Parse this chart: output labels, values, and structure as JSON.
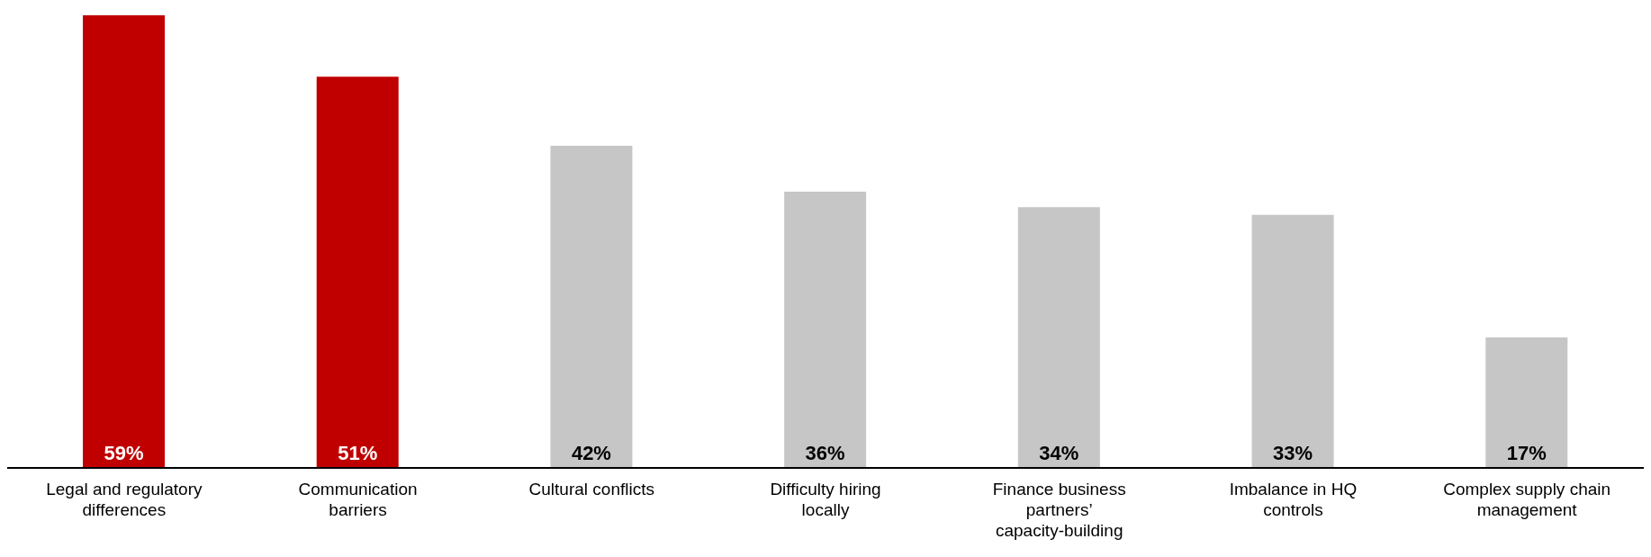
{
  "chart_data": {
    "type": "bar",
    "categories": [
      "Legal and regulatory differences",
      "Communication barriers",
      "Cultural conflicts",
      "Difficulty hiring locally",
      "Finance business partners’ capacity-building",
      "Imbalance in HQ controls",
      "Complex supply chain management"
    ],
    "values": [
      59,
      51,
      42,
      36,
      34,
      33,
      17
    ],
    "value_labels": [
      "59%",
      "51%",
      "42%",
      "36%",
      "34%",
      "33%",
      "17%"
    ],
    "colors": [
      "#c00000",
      "#c00000",
      "#c6c6c6",
      "#c6c6c6",
      "#c6c6c6",
      "#c6c6c6",
      "#c6c6c6"
    ]
  }
}
